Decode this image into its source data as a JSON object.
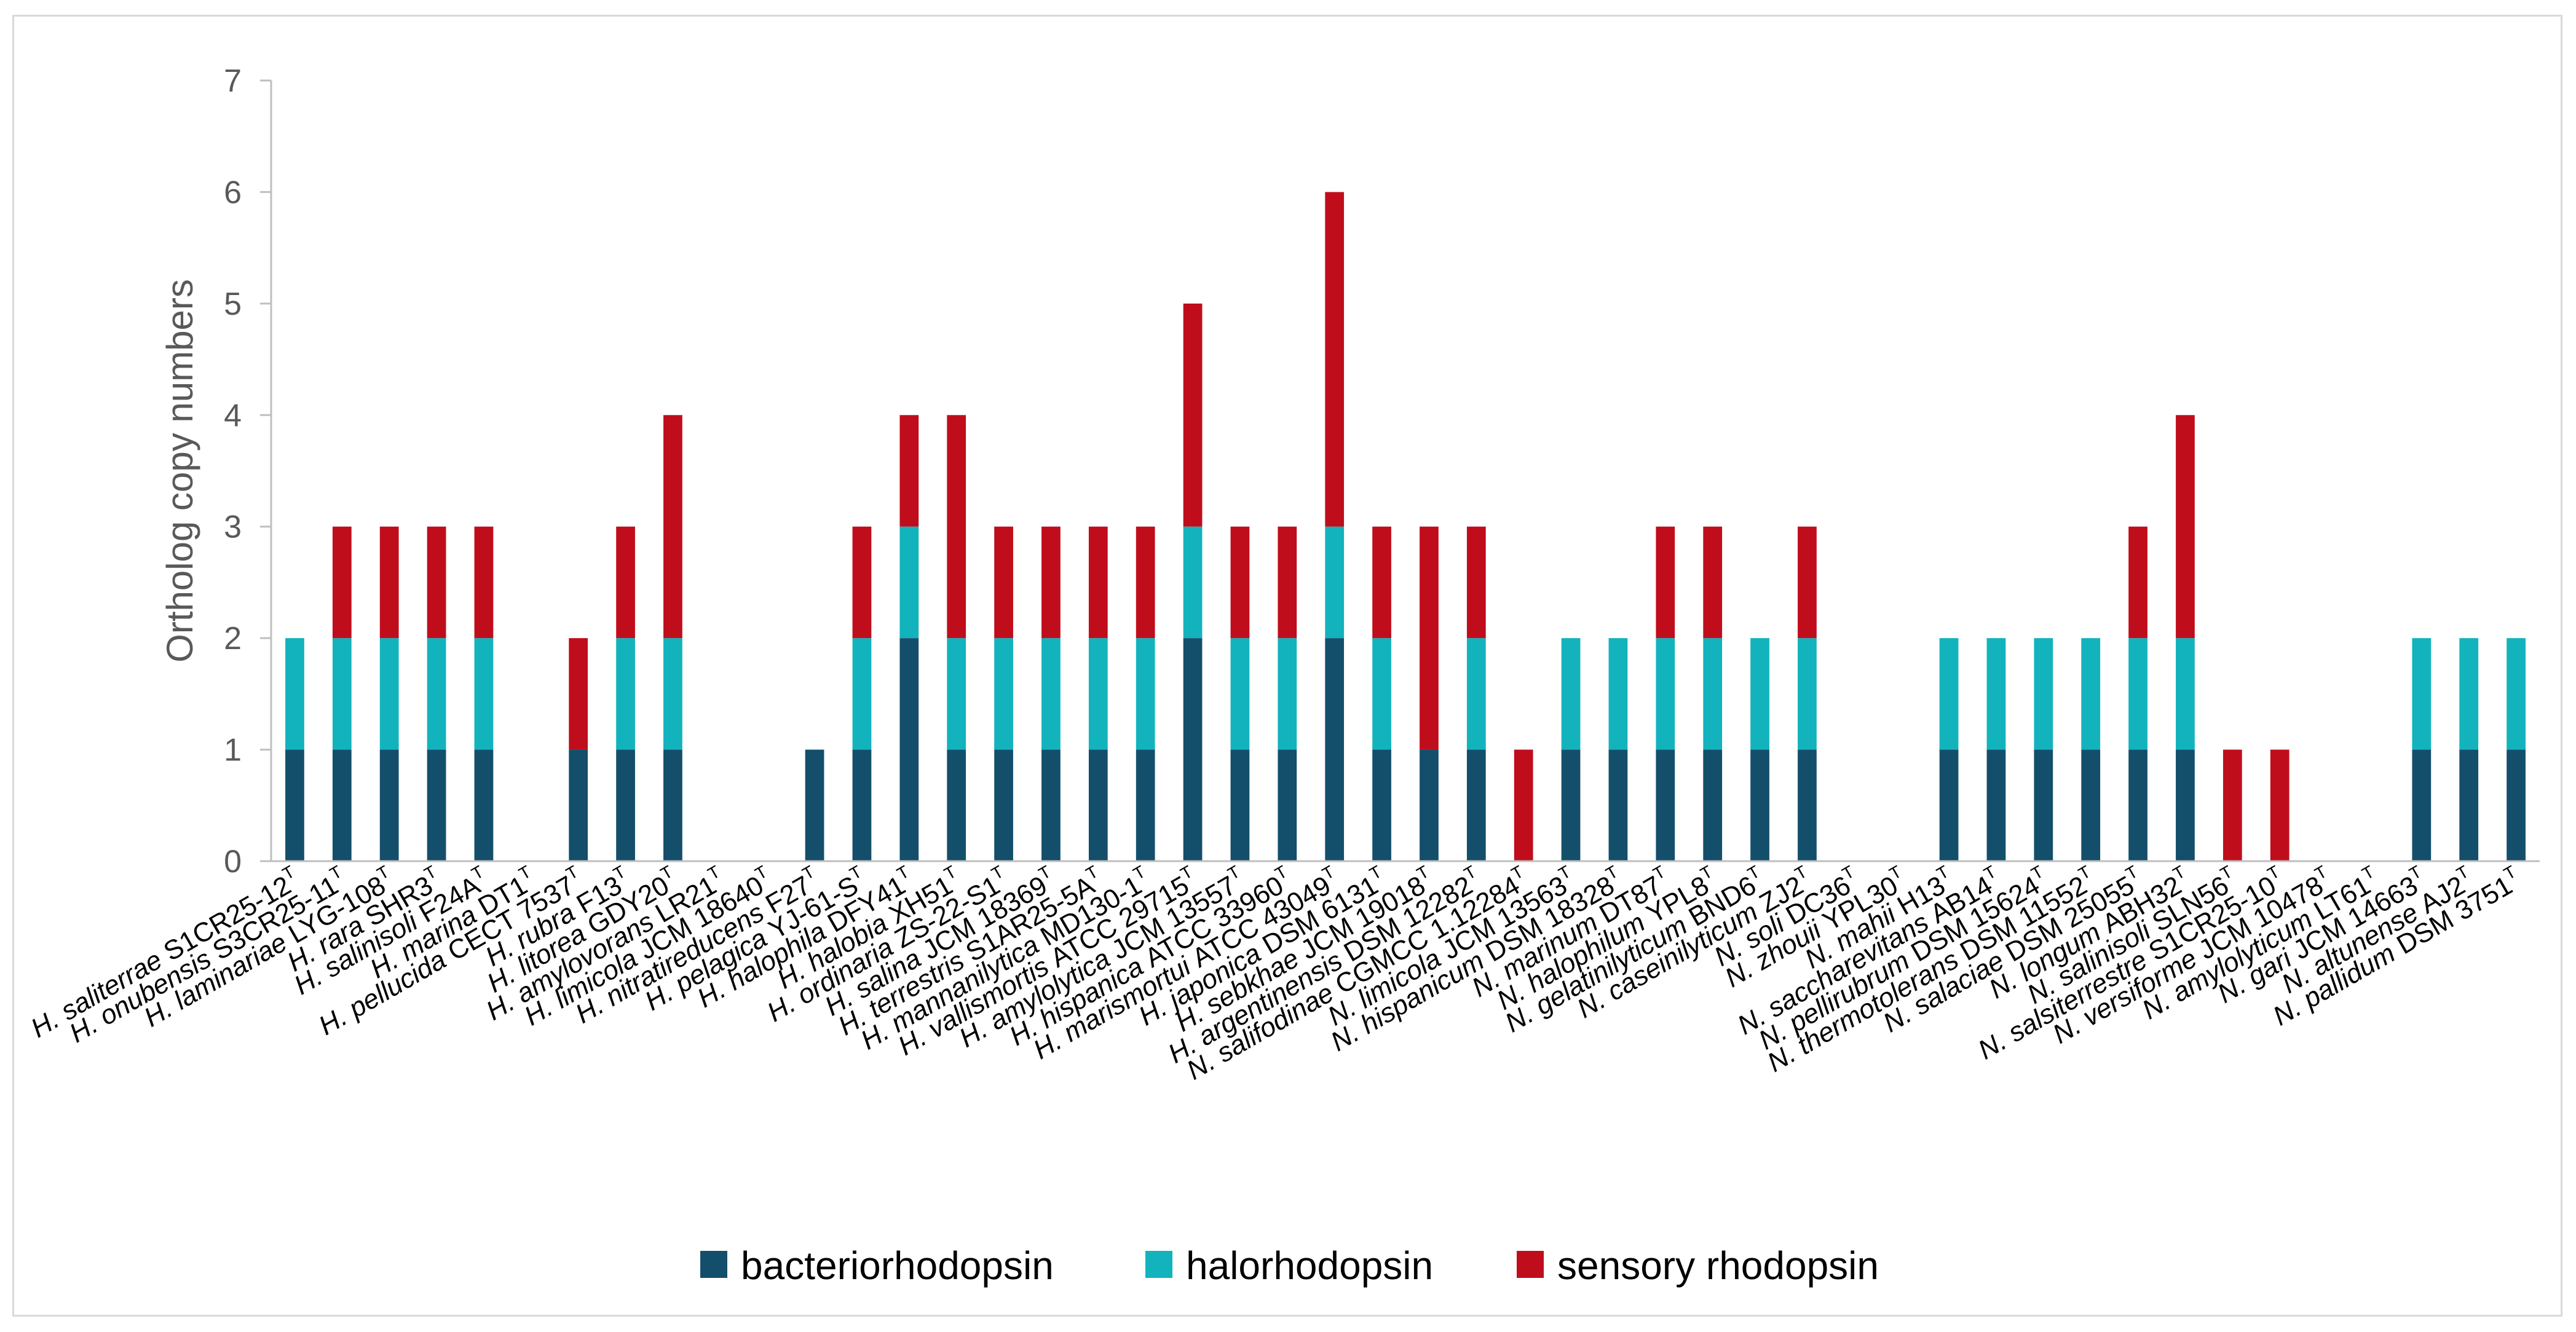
{
  "chart_data": {
    "type": "bar",
    "stacked": true,
    "title": "",
    "xlabel": "",
    "ylabel": "Ortholog copy numbers",
    "ylim": [
      0,
      7
    ],
    "yticks": [
      0,
      1,
      2,
      3,
      4,
      5,
      6,
      7
    ],
    "legend_position": "bottom",
    "categories": [
      {
        "name": "H. saliterrae",
        "strain": "S1CR25-12",
        "sup": "T"
      },
      {
        "name": "H. onubensis",
        "strain": "S3CR25-11",
        "sup": "T"
      },
      {
        "name": "H. laminariae",
        "strain": "LYG-108",
        "sup": "T"
      },
      {
        "name": "H. rara",
        "strain": "SHR3",
        "sup": "T"
      },
      {
        "name": "H. salinisoli",
        "strain": "F24A",
        "sup": "T"
      },
      {
        "name": "H. marina",
        "strain": "DT1",
        "sup": "T"
      },
      {
        "name": "H. pellucida",
        "strain": "CECT 7537",
        "sup": "T"
      },
      {
        "name": "H. rubra",
        "strain": "F13",
        "sup": "T"
      },
      {
        "name": "H. litorea",
        "strain": "GDY20",
        "sup": "T"
      },
      {
        "name": "H. amylovorans",
        "strain": "LR21",
        "sup": "T"
      },
      {
        "name": "H. limicola",
        "strain": "JCM 18640",
        "sup": "T"
      },
      {
        "name": "H. nitratireducens",
        "strain": "F27",
        "sup": "T"
      },
      {
        "name": "H. pelagica",
        "strain": "YJ-61-S",
        "sup": "T"
      },
      {
        "name": "H. halophila",
        "strain": "DFY41",
        "sup": "T"
      },
      {
        "name": "H. halobia",
        "strain": "XH51",
        "sup": "T"
      },
      {
        "name": "H. ordinaria",
        "strain": "ZS-22-S1",
        "sup": "T"
      },
      {
        "name": "H. salina",
        "strain": "JCM 18369",
        "sup": "T"
      },
      {
        "name": "H. terrestris",
        "strain": "S1AR25-5A",
        "sup": "T"
      },
      {
        "name": "H. mannanilytica",
        "strain": "MD130-1",
        "sup": "T"
      },
      {
        "name": "H. vallismortis",
        "strain": "ATCC 29715",
        "sup": "T"
      },
      {
        "name": "H. amylolytica",
        "strain": "JCM 13557",
        "sup": "T"
      },
      {
        "name": "H. hispanica",
        "strain": "ATCC 33960",
        "sup": "T"
      },
      {
        "name": "H. marismortui",
        "strain": "ATCC 43049",
        "sup": "T"
      },
      {
        "name": "H. japonica",
        "strain": "DSM 6131",
        "sup": "T"
      },
      {
        "name": "H. sebkhae",
        "strain": "JCM 19018",
        "sup": "T"
      },
      {
        "name": "H. argentinensis",
        "strain": "DSM 12282",
        "sup": "T"
      },
      {
        "name": "N. salifodinae",
        "strain": "CGMCC 1.12284",
        "sup": "T"
      },
      {
        "name": "N. limicola",
        "strain": "JCM 13563",
        "sup": "T"
      },
      {
        "name": "N. hispanicum",
        "strain": "DSM 18328",
        "sup": "T"
      },
      {
        "name": "N. marinum",
        "strain": "DT87",
        "sup": "T"
      },
      {
        "name": "N. halophilum",
        "strain": "YPL8",
        "sup": "T"
      },
      {
        "name": "N. gelatinilyticum",
        "strain": "BND6",
        "sup": "T"
      },
      {
        "name": "N. caseinilyticum",
        "strain": "ZJ2",
        "sup": "T"
      },
      {
        "name": "N. soli",
        "strain": "DC36",
        "sup": "T"
      },
      {
        "name": "N. zhouii",
        "strain": "YPL30",
        "sup": "T"
      },
      {
        "name": "N. mahii",
        "strain": "H13",
        "sup": "T"
      },
      {
        "name": "N. saccharevitans",
        "strain": "AB14",
        "sup": "T"
      },
      {
        "name": "N. pellirubrum",
        "strain": "DSM 15624",
        "sup": "T"
      },
      {
        "name": "N. thermotolerans",
        "strain": "DSM 11552",
        "sup": "T"
      },
      {
        "name": "N. salaciae",
        "strain": "DSM 25055",
        "sup": "T"
      },
      {
        "name": "N. longum",
        "strain": "ABH32",
        "sup": "T"
      },
      {
        "name": "N. salinisoli",
        "strain": "SLN56",
        "sup": "T"
      },
      {
        "name": "N. salsiterrestre",
        "strain": "S1CR25-10",
        "sup": "T"
      },
      {
        "name": "N. versiforme",
        "strain": "JCM 10478",
        "sup": "T"
      },
      {
        "name": "N. amylolyticum",
        "strain": "LT61",
        "sup": "T"
      },
      {
        "name": "N. gari",
        "strain": "JCM 14663",
        "sup": "T"
      },
      {
        "name": "N. altunense",
        "strain": "AJ2",
        "sup": "T"
      },
      {
        "name": "N. pallidum",
        "strain": "DSM 3751",
        "sup": "T"
      }
    ],
    "series": [
      {
        "name": "bacteriorhodopsin",
        "color": "#134f6b",
        "values": [
          1,
          1,
          1,
          1,
          1,
          0,
          1,
          1,
          1,
          0,
          0,
          1,
          1,
          2,
          1,
          1,
          1,
          1,
          1,
          2,
          1,
          1,
          2,
          1,
          1,
          1,
          0,
          1,
          1,
          1,
          1,
          1,
          1,
          0,
          0,
          1,
          1,
          1,
          1,
          1,
          1,
          0,
          0,
          0,
          0,
          1,
          1,
          1
        ]
      },
      {
        "name": "halorhodopsin",
        "color": "#12b3bd",
        "values": [
          1,
          1,
          1,
          1,
          1,
          0,
          0,
          1,
          1,
          0,
          0,
          0,
          1,
          1,
          1,
          1,
          1,
          1,
          1,
          1,
          1,
          1,
          1,
          1,
          0,
          1,
          0,
          1,
          1,
          1,
          1,
          1,
          1,
          0,
          0,
          1,
          1,
          1,
          1,
          1,
          1,
          0,
          0,
          0,
          0,
          1,
          1,
          1
        ]
      },
      {
        "name": "sensory rhodopsin",
        "color": "#c00d1c",
        "values": [
          0,
          1,
          1,
          1,
          1,
          0,
          1,
          1,
          2,
          0,
          0,
          0,
          1,
          1,
          2,
          1,
          1,
          1,
          1,
          2,
          1,
          1,
          3,
          1,
          2,
          1,
          1,
          0,
          0,
          1,
          1,
          0,
          1,
          0,
          0,
          0,
          0,
          0,
          0,
          1,
          2,
          1,
          1,
          0,
          0,
          0,
          0,
          0
        ]
      }
    ]
  }
}
